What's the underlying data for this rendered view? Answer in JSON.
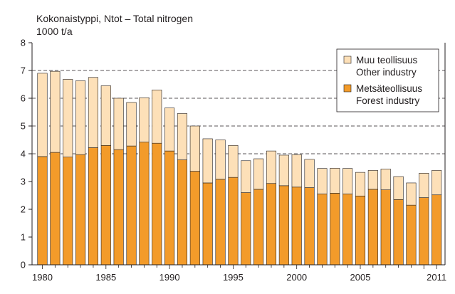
{
  "chart_data": {
    "type": "bar",
    "stacked": true,
    "title": "Kokonaistyppi, Ntot – Total nitrogen",
    "ylabel": "1000 t/a",
    "xlabel": "",
    "ylim": [
      0,
      8
    ],
    "yticks": [
      "0",
      "1",
      "2",
      "3",
      "4",
      "5",
      "6",
      "7",
      "8"
    ],
    "dashed_gridlines_at": [
      4,
      5,
      6,
      7
    ],
    "xtick_labels": [
      "1980",
      "1985",
      "1990",
      "1995",
      "2000",
      "2005",
      "2011"
    ],
    "xtick_years": [
      1980,
      1985,
      1990,
      1995,
      2000,
      2005,
      2011
    ],
    "categories": [
      1980,
      1981,
      1982,
      1983,
      1984,
      1985,
      1986,
      1987,
      1988,
      1989,
      1990,
      1991,
      1992,
      1993,
      1994,
      1995,
      1996,
      1997,
      1998,
      1999,
      2000,
      2001,
      2002,
      2003,
      2004,
      2005,
      2006,
      2007,
      2008,
      2009,
      2010,
      2011
    ],
    "series": [
      {
        "name": "Metsäteollisuus",
        "name_en": "Forest industry",
        "color": "#f39b2a",
        "values": [
          3.9,
          4.05,
          3.88,
          3.97,
          4.22,
          4.3,
          4.15,
          4.28,
          4.42,
          4.38,
          4.1,
          3.78,
          3.37,
          2.95,
          3.08,
          3.15,
          2.6,
          2.72,
          2.93,
          2.85,
          2.8,
          2.78,
          2.55,
          2.58,
          2.55,
          2.48,
          2.72,
          2.7,
          2.35,
          2.15,
          2.42,
          2.52
        ]
      },
      {
        "name": "Muu teollisuus",
        "name_en": "Other industry",
        "color": "#fde0b8",
        "values": [
          3.0,
          2.92,
          2.8,
          2.66,
          2.53,
          2.15,
          1.85,
          1.57,
          1.6,
          1.92,
          1.55,
          1.67,
          1.63,
          1.59,
          1.42,
          1.15,
          1.15,
          1.1,
          1.17,
          1.1,
          1.17,
          1.02,
          0.92,
          0.9,
          0.92,
          0.85,
          0.68,
          0.75,
          0.83,
          0.8,
          0.88,
          0.88
        ]
      }
    ],
    "legend_position": "top-right",
    "legend": [
      {
        "line1": "Muu teollisuus",
        "line2": "Other industry",
        "color": "#fde0b8"
      },
      {
        "line1": "Metsäteollisuus",
        "line2": "Forest industry",
        "color": "#f39b2a"
      }
    ]
  }
}
